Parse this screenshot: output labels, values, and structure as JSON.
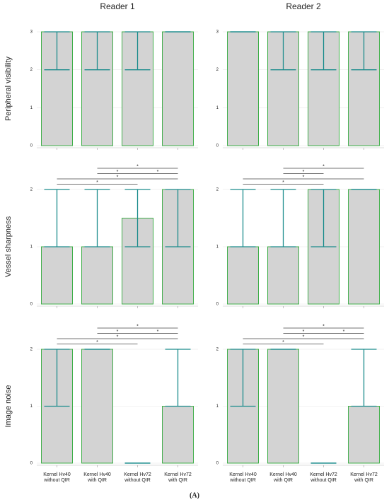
{
  "chart_data": {
    "type": "bar",
    "columns": [
      "Reader 1",
      "Reader 2"
    ],
    "categories": [
      [
        "Kernel Hv40",
        "without QIR"
      ],
      [
        "Kernel Hv40",
        "with QIR"
      ],
      [
        "Kernel Hv72",
        "without QIR"
      ],
      [
        "Kernel Hv72",
        "with QIR"
      ]
    ],
    "bar_color": "#d3d3d3",
    "edge_color": "#3fae49",
    "whisker_color": "#1b8c8c",
    "grid": true,
    "rows": [
      {
        "ylabel": "Peripheral visibility",
        "ylim": [
          0,
          3
        ],
        "yticks": [
          0,
          1,
          2,
          3
        ],
        "panels": [
          {
            "values": [
              3,
              3,
              3,
              3
            ],
            "low": [
              2,
              2,
              2,
              3
            ],
            "high": [
              3,
              3,
              3,
              3
            ]
          },
          {
            "values": [
              3,
              3,
              3,
              3
            ],
            "low": [
              3,
              2,
              2,
              2
            ],
            "high": [
              3,
              3,
              3,
              3
            ]
          }
        ]
      },
      {
        "ylabel": "Vessel sharpness",
        "ylim": [
          0,
          2
        ],
        "yticks": [
          0,
          1,
          2
        ],
        "panels": [
          {
            "values": [
              1,
              1,
              1.5,
              2
            ],
            "low": [
              1,
              1,
              1,
              1
            ],
            "high": [
              2,
              2,
              2,
              2
            ],
            "brackets": [
              {
                "from": 1,
                "to": 3,
                "label": "*"
              },
              {
                "from": 1,
                "to": 2,
                "label": "*"
              },
              {
                "from": 2,
                "to": 3,
                "label": "*"
              },
              {
                "from": 0,
                "to": 3,
                "label": "*"
              },
              {
                "from": 0,
                "to": 2,
                "label": "*"
              }
            ]
          },
          {
            "values": [
              1,
              1,
              2,
              2
            ],
            "low": [
              1,
              1,
              1,
              2
            ],
            "high": [
              2,
              2,
              2,
              2
            ],
            "brackets": [
              {
                "from": 1,
                "to": 3,
                "label": "*"
              },
              {
                "from": 1,
                "to": 2,
                "label": "*"
              },
              {
                "from": 0,
                "to": 3,
                "label": "*"
              },
              {
                "from": 0,
                "to": 2,
                "label": "*"
              }
            ]
          }
        ]
      },
      {
        "ylabel": "Image noise",
        "ylim": [
          0,
          2
        ],
        "yticks": [
          0,
          1,
          2
        ],
        "panels": [
          {
            "values": [
              2,
              2,
              0,
              1
            ],
            "low": [
              1,
              2,
              0,
              1
            ],
            "high": [
              2,
              2,
              0,
              2
            ],
            "brackets": [
              {
                "from": 1,
                "to": 3,
                "label": "*"
              },
              {
                "from": 1,
                "to": 2,
                "label": "*"
              },
              {
                "from": 2,
                "to": 3,
                "label": "*"
              },
              {
                "from": 0,
                "to": 3,
                "label": "*"
              },
              {
                "from": 0,
                "to": 2,
                "label": "*"
              }
            ]
          },
          {
            "values": [
              2,
              2,
              0,
              1
            ],
            "low": [
              1,
              2,
              0,
              1
            ],
            "high": [
              2,
              2,
              0,
              2
            ],
            "brackets": [
              {
                "from": 1,
                "to": 3,
                "label": "*"
              },
              {
                "from": 1,
                "to": 2,
                "label": "*"
              },
              {
                "from": 2,
                "to": 3,
                "label": "*"
              },
              {
                "from": 0,
                "to": 3,
                "label": "*"
              },
              {
                "from": 0,
                "to": 2,
                "label": "*"
              }
            ]
          }
        ]
      }
    ]
  },
  "caption": "(A)"
}
